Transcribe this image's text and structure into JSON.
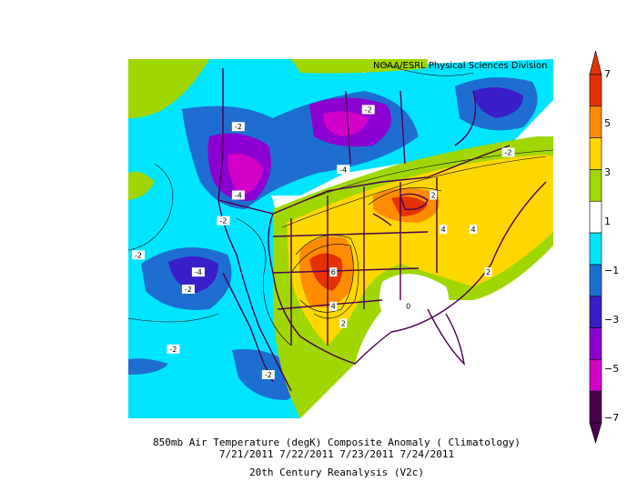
{
  "credit": "NOAA/ESRL Physical Sciences Division",
  "caption": {
    "line1": "850mb Air Temperature (degK) Composite Anomaly ( Climatology)",
    "line2": "7/21/2011 7/22/2011 7/23/2011 7/24/2011",
    "line3": "20th Century Reanalysis (V2c)"
  },
  "colorbar": {
    "labels": [
      "7",
      "5",
      "3",
      "1",
      "−1",
      "−3",
      "−5",
      "−7"
    ],
    "colors": [
      "#e63200",
      "#ff8c00",
      "#ffd700",
      "#a0d700",
      "#ffffff",
      "#00e5ff",
      "#1e6ed2",
      "#3a1ec8",
      "#8c00d2",
      "#d200c8",
      "#4b0050"
    ]
  },
  "contour_labels": [
    {
      "text": "-2",
      "lon": -92,
      "lat": 54
    },
    {
      "text": "-2",
      "lon": -118,
      "lat": 52
    },
    {
      "text": "-2",
      "lon": -64,
      "lat": 49
    },
    {
      "text": "-4",
      "lon": -97,
      "lat": 47
    },
    {
      "text": "-4",
      "lon": -118,
      "lat": 44
    },
    {
      "text": "-2",
      "lon": -121,
      "lat": 41
    },
    {
      "text": "-2",
      "lon": -138,
      "lat": 37
    },
    {
      "text": "-4",
      "lon": -126,
      "lat": 35
    },
    {
      "text": "-2",
      "lon": -128,
      "lat": 33
    },
    {
      "text": "-2",
      "lon": -131,
      "lat": 26
    },
    {
      "text": "-2",
      "lon": -112,
      "lat": 23
    },
    {
      "text": "2",
      "lon": -79,
      "lat": 44
    },
    {
      "text": "4",
      "lon": -77,
      "lat": 40
    },
    {
      "text": "4",
      "lon": -71,
      "lat": 40
    },
    {
      "text": "2",
      "lon": -68,
      "lat": 35
    },
    {
      "text": "6",
      "lon": -99,
      "lat": 35
    },
    {
      "text": "4",
      "lon": -99,
      "lat": 31
    },
    {
      "text": "2",
      "lon": -97,
      "lat": 29
    },
    {
      "text": "0",
      "lon": -84,
      "lat": 31
    }
  ]
}
